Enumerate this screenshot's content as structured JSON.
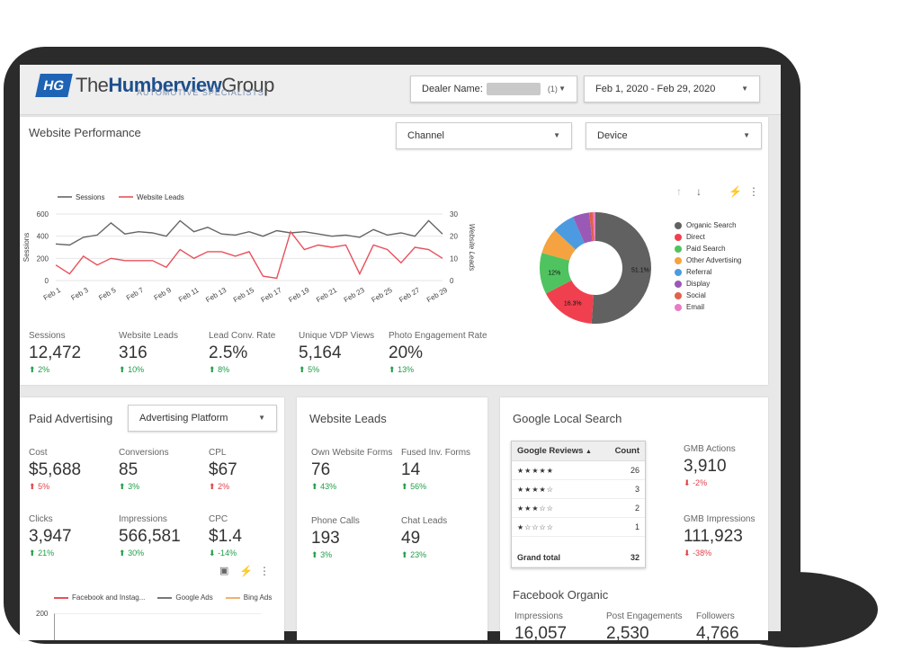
{
  "header": {
    "logo_badge": "HG",
    "logo_the": "The",
    "logo_humberview": "Humberview",
    "logo_group": "Group",
    "logo_sub": "AUTOMOTIVE SPECIALISTS",
    "dealer_label": "Dealer Name:",
    "dealer_count": "(1)",
    "date_range": "Feb 1, 2020 - Feb 29, 2020"
  },
  "website_performance": {
    "title": "Website Performance",
    "channel_label": "Channel",
    "device_label": "Device",
    "metrics": [
      {
        "label": "Sessions",
        "value": "12,472",
        "change": "2%"
      },
      {
        "label": "Website Leads",
        "value": "316",
        "change": "10%"
      },
      {
        "label": "Lead Conv. Rate",
        "value": "2.5%",
        "change": "8%"
      },
      {
        "label": "Unique VDP Views",
        "value": "5,164",
        "change": "5%"
      },
      {
        "label": "Photo Engagement Rate",
        "value": "20%",
        "change": "13%"
      }
    ]
  },
  "paid_advertising": {
    "title": "Paid Advertising",
    "platform_label": "Advertising Platform",
    "metrics": [
      {
        "label": "Cost",
        "value": "$5,688",
        "change": "5%",
        "direction": "up-red"
      },
      {
        "label": "Conversions",
        "value": "85",
        "change": "3%",
        "direction": "up"
      },
      {
        "label": "CPL",
        "value": "$67",
        "change": "2%",
        "direction": "up-red"
      },
      {
        "label": "Clicks",
        "value": "3,947",
        "change": "21%",
        "direction": "up"
      },
      {
        "label": "Impressions",
        "value": "566,581",
        "change": "30%",
        "direction": "up"
      },
      {
        "label": "CPC",
        "value": "$1.4",
        "change": "-14%",
        "direction": "down"
      }
    ],
    "legend": [
      "Facebook and Instag...",
      "Google Ads",
      "Bing Ads"
    ],
    "y_tick_top": "200"
  },
  "website_leads": {
    "title": "Website Leads",
    "metrics": [
      {
        "label": "Own Website Forms",
        "value": "76",
        "change": "43%"
      },
      {
        "label": "Fused Inv. Forms",
        "value": "14",
        "change": "56%"
      },
      {
        "label": "Phone Calls",
        "value": "193",
        "change": "3%"
      },
      {
        "label": "Chat Leads",
        "value": "49",
        "change": "23%"
      }
    ]
  },
  "google_local": {
    "title": "Google Local Search",
    "table": {
      "col1": "Google Reviews",
      "sort_icon": "▲",
      "col2": "Count",
      "rows": [
        {
          "stars": "★★★★★",
          "count": "26"
        },
        {
          "stars": "★★★★☆",
          "count": "3"
        },
        {
          "stars": "★★★☆☆",
          "count": "2"
        },
        {
          "stars": "★☆☆☆☆",
          "count": "1"
        }
      ],
      "total_label": "Grand total",
      "total_value": "32"
    },
    "gmb_actions_label": "GMB Actions",
    "gmb_actions_value": "3,910",
    "gmb_actions_change": "-2%",
    "gmb_impressions_label": "GMB Impressions",
    "gmb_impressions_value": "111,923",
    "gmb_impressions_change": "-38%"
  },
  "facebook_organic": {
    "title": "Facebook Organic",
    "metrics": [
      {
        "label": "Impressions",
        "value": "16,057"
      },
      {
        "label": "Post Engagements",
        "value": "2,530"
      },
      {
        "label": "Followers",
        "value": "4,766"
      }
    ]
  },
  "chart_data": [
    {
      "type": "line",
      "title": "",
      "legend_position": "top-left",
      "x": [
        "Feb 1",
        "Feb 2",
        "Feb 3",
        "Feb 4",
        "Feb 5",
        "Feb 6",
        "Feb 7",
        "Feb 8",
        "Feb 9",
        "Feb 10",
        "Feb 11",
        "Feb 12",
        "Feb 13",
        "Feb 14",
        "Feb 15",
        "Feb 16",
        "Feb 17",
        "Feb 18",
        "Feb 19",
        "Feb 20",
        "Feb 21",
        "Feb 22",
        "Feb 23",
        "Feb 24",
        "Feb 25",
        "Feb 26",
        "Feb 27",
        "Feb 28",
        "Feb 29"
      ],
      "x_tick_labels": [
        "Feb 1",
        "Feb 3",
        "Feb 5",
        "Feb 7",
        "Feb 9",
        "Feb 11",
        "Feb 13",
        "Feb 15",
        "Feb 17",
        "Feb 19",
        "Feb 21",
        "Feb 23",
        "Feb 25",
        "Feb 27",
        "Feb 29"
      ],
      "ylabel": "Sessions",
      "y2label": "Website Leads",
      "ylim": [
        0,
        600
      ],
      "y_ticks": [
        0,
        200,
        400,
        600
      ],
      "y2lim": [
        0,
        30
      ],
      "y2_ticks": [
        0,
        10,
        20,
        30
      ],
      "series": [
        {
          "name": "Sessions",
          "axis": "left",
          "color": "#666666",
          "values": [
            330,
            320,
            390,
            410,
            520,
            420,
            440,
            430,
            400,
            540,
            440,
            480,
            420,
            410,
            440,
            400,
            450,
            430,
            440,
            420,
            400,
            410,
            390,
            460,
            410,
            430,
            400,
            540,
            420
          ]
        },
        {
          "name": "Website Leads",
          "axis": "right",
          "color": "#e8505b",
          "values": [
            7,
            3,
            11,
            7,
            10,
            9,
            9,
            9,
            6,
            14,
            10,
            13,
            13,
            11,
            13,
            2,
            1,
            22,
            14,
            16,
            15,
            16,
            3,
            16,
            14,
            8,
            15,
            14,
            10
          ]
        }
      ]
    },
    {
      "type": "pie",
      "donut": true,
      "legend_position": "right",
      "labels": [
        "Organic Search",
        "Direct",
        "Paid Search",
        "Other Advertising",
        "Referral",
        "Display",
        "Social",
        "Email"
      ],
      "values": [
        51.1,
        16.3,
        12.0,
        7.5,
        6.5,
        4.8,
        1.1,
        0.7
      ],
      "colors": [
        "#616161",
        "#f0404f",
        "#4fc35f",
        "#f4a340",
        "#4c9be0",
        "#9b59b6",
        "#e0624b",
        "#e97ac6"
      ],
      "slice_labels": [
        "51.1%",
        "16.3%",
        "12%",
        "",
        "",
        "",
        "",
        ""
      ]
    }
  ]
}
